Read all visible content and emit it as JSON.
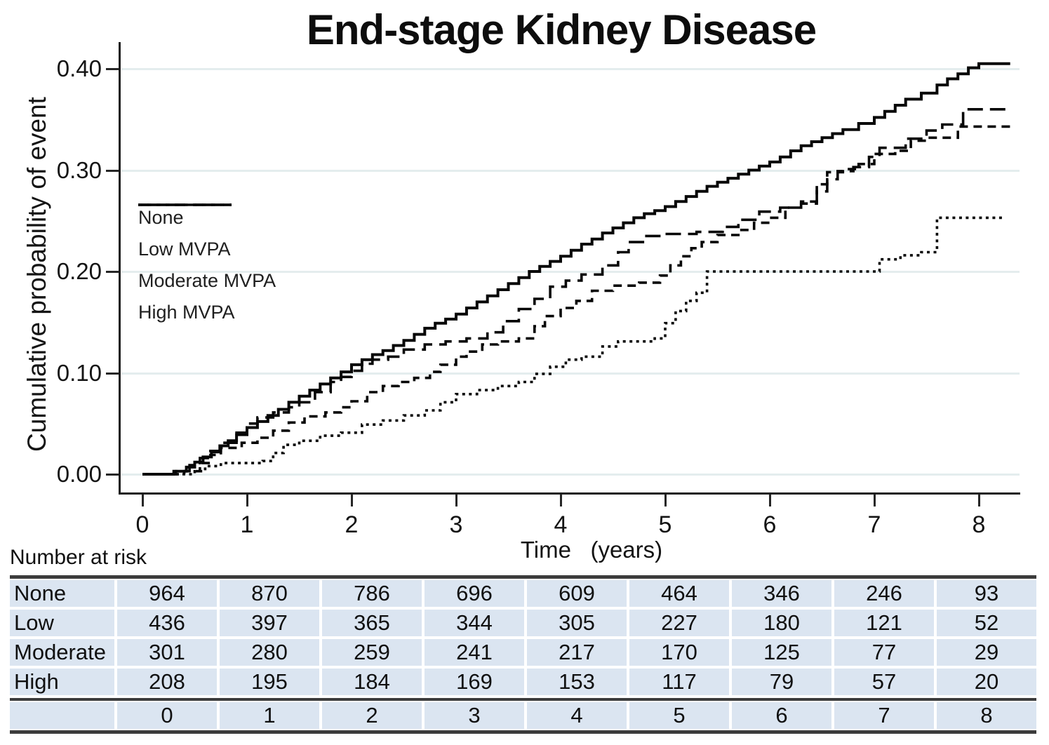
{
  "title": "End-stage Kidney Disease",
  "y_axis": {
    "label": "Cumulative probability of event",
    "ticks": [
      {
        "label": "0.40",
        "value": 0.4
      },
      {
        "label": "0.30",
        "value": 0.3
      },
      {
        "label": "0.20",
        "value": 0.2
      },
      {
        "label": "0.10",
        "value": 0.1
      },
      {
        "label": "0.00",
        "value": 0.0
      }
    ]
  },
  "x_axis": {
    "label": "Time   (years)",
    "ticks": [
      {
        "label": "0",
        "value": 0
      },
      {
        "label": "1",
        "value": 1
      },
      {
        "label": "2",
        "value": 2
      },
      {
        "label": "3",
        "value": 3
      },
      {
        "label": "4",
        "value": 4
      },
      {
        "label": "5",
        "value": 5
      },
      {
        "label": "6",
        "value": 6
      },
      {
        "label": "7",
        "value": 7
      },
      {
        "label": "8",
        "value": 8
      }
    ]
  },
  "legend": {
    "items": [
      {
        "label": "None",
        "style": "solid"
      },
      {
        "label": "Low MVPA",
        "style": "long-dash"
      },
      {
        "label": "Moderate MVPA",
        "style": "dash"
      },
      {
        "label": "High MVPA",
        "style": "dot"
      }
    ]
  },
  "risk_table": {
    "caption": "Number at risk",
    "rows": [
      {
        "label": "None",
        "counts": [
          964,
          870,
          786,
          696,
          609,
          464,
          346,
          246,
          93
        ]
      },
      {
        "label": "Low",
        "counts": [
          436,
          397,
          365,
          344,
          305,
          227,
          180,
          121,
          52
        ]
      },
      {
        "label": "Moderate",
        "counts": [
          301,
          280,
          259,
          241,
          217,
          170,
          125,
          77,
          29
        ]
      },
      {
        "label": "High",
        "counts": [
          208,
          195,
          184,
          169,
          153,
          117,
          79,
          57,
          20
        ]
      }
    ],
    "time_row": [
      "0",
      "1",
      "2",
      "3",
      "4",
      "5",
      "6",
      "7",
      "8"
    ]
  },
  "colors": {
    "curve": "#060606",
    "grid": "#e4edee",
    "axis": "#1c1c1c",
    "table_cell": "#dbe5f1",
    "table_border": "#3c3c3c"
  },
  "chart_data": {
    "type": "line",
    "subtype": "step-cumulative-incidence",
    "title": "End-stage Kidney Disease",
    "xlabel": "Time (years)",
    "ylabel": "Cumulative probability of event",
    "xlim": [
      0,
      8.3
    ],
    "ylim": [
      0,
      0.42
    ],
    "grid": true,
    "legend_position": "upper-left-inside",
    "series": [
      {
        "name": "None",
        "style": "solid",
        "points": [
          [
            0,
            0
          ],
          [
            0.3,
            0.003
          ],
          [
            0.42,
            0.007
          ],
          [
            0.5,
            0.012
          ],
          [
            0.58,
            0.017
          ],
          [
            0.66,
            0.022
          ],
          [
            0.74,
            0.028
          ],
          [
            0.82,
            0.033
          ],
          [
            0.9,
            0.039
          ],
          [
            1.0,
            0.046
          ],
          [
            1.1,
            0.052
          ],
          [
            1.2,
            0.058
          ],
          [
            1.3,
            0.064
          ],
          [
            1.4,
            0.071
          ],
          [
            1.5,
            0.077
          ],
          [
            1.6,
            0.083
          ],
          [
            1.7,
            0.089
          ],
          [
            1.8,
            0.095
          ],
          [
            1.9,
            0.101
          ],
          [
            2.0,
            0.108
          ],
          [
            2.1,
            0.113
          ],
          [
            2.2,
            0.118
          ],
          [
            2.3,
            0.122
          ],
          [
            2.4,
            0.127
          ],
          [
            2.5,
            0.132
          ],
          [
            2.6,
            0.138
          ],
          [
            2.7,
            0.144
          ],
          [
            2.8,
            0.149
          ],
          [
            2.9,
            0.153
          ],
          [
            3.0,
            0.158
          ],
          [
            3.1,
            0.164
          ],
          [
            3.2,
            0.17
          ],
          [
            3.3,
            0.176
          ],
          [
            3.4,
            0.182
          ],
          [
            3.5,
            0.188
          ],
          [
            3.6,
            0.194
          ],
          [
            3.7,
            0.2
          ],
          [
            3.8,
            0.205
          ],
          [
            3.9,
            0.21
          ],
          [
            4.0,
            0.215
          ],
          [
            4.1,
            0.221
          ],
          [
            4.2,
            0.227
          ],
          [
            4.3,
            0.232
          ],
          [
            4.4,
            0.238
          ],
          [
            4.5,
            0.243
          ],
          [
            4.6,
            0.248
          ],
          [
            4.7,
            0.253
          ],
          [
            4.8,
            0.257
          ],
          [
            4.9,
            0.26
          ],
          [
            5.0,
            0.264
          ],
          [
            5.1,
            0.269
          ],
          [
            5.2,
            0.274
          ],
          [
            5.3,
            0.279
          ],
          [
            5.4,
            0.284
          ],
          [
            5.5,
            0.288
          ],
          [
            5.6,
            0.292
          ],
          [
            5.7,
            0.296
          ],
          [
            5.8,
            0.3
          ],
          [
            5.9,
            0.304
          ],
          [
            6.0,
            0.308
          ],
          [
            6.1,
            0.313
          ],
          [
            6.2,
            0.319
          ],
          [
            6.3,
            0.324
          ],
          [
            6.4,
            0.328
          ],
          [
            6.5,
            0.332
          ],
          [
            6.6,
            0.336
          ],
          [
            6.7,
            0.34
          ],
          [
            6.85,
            0.346
          ],
          [
            7.0,
            0.352
          ],
          [
            7.1,
            0.358
          ],
          [
            7.2,
            0.364
          ],
          [
            7.3,
            0.37
          ],
          [
            7.45,
            0.376
          ],
          [
            7.6,
            0.384
          ],
          [
            7.7,
            0.39
          ],
          [
            7.8,
            0.395
          ],
          [
            7.9,
            0.401
          ],
          [
            8.0,
            0.405
          ],
          [
            8.3,
            0.405
          ]
        ]
      },
      {
        "name": "Low MVPA",
        "style": "long-dash",
        "points": [
          [
            0,
            0
          ],
          [
            0.32,
            0.003
          ],
          [
            0.45,
            0.009
          ],
          [
            0.55,
            0.016
          ],
          [
            0.65,
            0.023
          ],
          [
            0.75,
            0.031
          ],
          [
            0.9,
            0.041
          ],
          [
            1.0,
            0.05
          ],
          [
            1.1,
            0.056
          ],
          [
            1.25,
            0.061
          ],
          [
            1.4,
            0.066
          ],
          [
            1.5,
            0.071
          ],
          [
            1.65,
            0.081
          ],
          [
            1.8,
            0.091
          ],
          [
            1.9,
            0.096
          ],
          [
            2.0,
            0.102
          ],
          [
            2.1,
            0.109
          ],
          [
            2.2,
            0.113
          ],
          [
            2.35,
            0.116
          ],
          [
            2.5,
            0.123
          ],
          [
            2.7,
            0.128
          ],
          [
            2.9,
            0.131
          ],
          [
            3.1,
            0.134
          ],
          [
            3.3,
            0.14
          ],
          [
            3.45,
            0.151
          ],
          [
            3.6,
            0.163
          ],
          [
            3.75,
            0.173
          ],
          [
            3.9,
            0.185
          ],
          [
            4.05,
            0.191
          ],
          [
            4.2,
            0.197
          ],
          [
            4.4,
            0.206
          ],
          [
            4.55,
            0.219
          ],
          [
            4.65,
            0.229
          ],
          [
            4.8,
            0.235
          ],
          [
            5.0,
            0.237
          ],
          [
            5.3,
            0.239
          ],
          [
            5.55,
            0.244
          ],
          [
            5.7,
            0.251
          ],
          [
            5.9,
            0.259
          ],
          [
            6.1,
            0.263
          ],
          [
            6.3,
            0.267
          ],
          [
            6.45,
            0.279
          ],
          [
            6.55,
            0.291
          ],
          [
            6.65,
            0.299
          ],
          [
            6.8,
            0.303
          ],
          [
            6.95,
            0.313
          ],
          [
            7.05,
            0.322
          ],
          [
            7.3,
            0.331
          ],
          [
            7.5,
            0.339
          ],
          [
            7.65,
            0.345
          ],
          [
            7.85,
            0.36
          ],
          [
            8.3,
            0.36
          ]
        ]
      },
      {
        "name": "Moderate MVPA",
        "style": "dash",
        "points": [
          [
            0,
            0
          ],
          [
            0.4,
            0.003
          ],
          [
            0.55,
            0.011
          ],
          [
            0.65,
            0.019
          ],
          [
            0.75,
            0.026
          ],
          [
            0.95,
            0.031
          ],
          [
            1.1,
            0.036
          ],
          [
            1.25,
            0.043
          ],
          [
            1.4,
            0.051
          ],
          [
            1.55,
            0.057
          ],
          [
            1.75,
            0.061
          ],
          [
            1.9,
            0.066
          ],
          [
            2.0,
            0.072
          ],
          [
            2.15,
            0.081
          ],
          [
            2.3,
            0.087
          ],
          [
            2.45,
            0.091
          ],
          [
            2.6,
            0.095
          ],
          [
            2.75,
            0.101
          ],
          [
            2.85,
            0.108
          ],
          [
            3.0,
            0.116
          ],
          [
            3.1,
            0.121
          ],
          [
            3.25,
            0.128
          ],
          [
            3.4,
            0.131
          ],
          [
            3.6,
            0.134
          ],
          [
            3.75,
            0.146
          ],
          [
            3.85,
            0.156
          ],
          [
            4.0,
            0.164
          ],
          [
            4.15,
            0.171
          ],
          [
            4.3,
            0.181
          ],
          [
            4.5,
            0.186
          ],
          [
            4.75,
            0.189
          ],
          [
            4.95,
            0.196
          ],
          [
            5.05,
            0.206
          ],
          [
            5.15,
            0.215
          ],
          [
            5.25,
            0.223
          ],
          [
            5.35,
            0.229
          ],
          [
            5.5,
            0.236
          ],
          [
            5.7,
            0.241
          ],
          [
            5.85,
            0.248
          ],
          [
            6.0,
            0.253
          ],
          [
            6.15,
            0.263
          ],
          [
            6.3,
            0.269
          ],
          [
            6.45,
            0.286
          ],
          [
            6.55,
            0.298
          ],
          [
            6.7,
            0.301
          ],
          [
            6.85,
            0.306
          ],
          [
            7.0,
            0.316
          ],
          [
            7.2,
            0.319
          ],
          [
            7.35,
            0.329
          ],
          [
            7.5,
            0.332
          ],
          [
            7.8,
            0.343
          ],
          [
            8.3,
            0.343
          ]
        ]
      },
      {
        "name": "High MVPA",
        "style": "dot",
        "points": [
          [
            0,
            0
          ],
          [
            0.5,
            0.003
          ],
          [
            0.6,
            0.008
          ],
          [
            0.75,
            0.011
          ],
          [
            1.15,
            0.013
          ],
          [
            1.25,
            0.021
          ],
          [
            1.35,
            0.029
          ],
          [
            1.5,
            0.033
          ],
          [
            1.7,
            0.038
          ],
          [
            1.9,
            0.041
          ],
          [
            2.1,
            0.049
          ],
          [
            2.3,
            0.053
          ],
          [
            2.5,
            0.058
          ],
          [
            2.7,
            0.063
          ],
          [
            2.85,
            0.071
          ],
          [
            3.0,
            0.079
          ],
          [
            3.2,
            0.083
          ],
          [
            3.4,
            0.087
          ],
          [
            3.6,
            0.091
          ],
          [
            3.75,
            0.099
          ],
          [
            3.9,
            0.106
          ],
          [
            4.05,
            0.113
          ],
          [
            4.2,
            0.116
          ],
          [
            4.4,
            0.126
          ],
          [
            4.55,
            0.131
          ],
          [
            4.9,
            0.134
          ],
          [
            5.0,
            0.149
          ],
          [
            5.1,
            0.161
          ],
          [
            5.2,
            0.171
          ],
          [
            5.3,
            0.179
          ],
          [
            5.4,
            0.2
          ],
          [
            6.95,
            0.2
          ],
          [
            7.05,
            0.212
          ],
          [
            7.25,
            0.216
          ],
          [
            7.45,
            0.219
          ],
          [
            7.6,
            0.253
          ],
          [
            8.25,
            0.253
          ]
        ]
      }
    ],
    "number_at_risk": {
      "times": [
        0,
        1,
        2,
        3,
        4,
        5,
        6,
        7,
        8
      ],
      "None": [
        964,
        870,
        786,
        696,
        609,
        464,
        346,
        246,
        93
      ],
      "Low": [
        436,
        397,
        365,
        344,
        305,
        227,
        180,
        121,
        52
      ],
      "Moderate": [
        301,
        280,
        259,
        241,
        217,
        170,
        125,
        77,
        29
      ],
      "High": [
        208,
        195,
        184,
        169,
        153,
        117,
        79,
        57,
        20
      ]
    }
  }
}
